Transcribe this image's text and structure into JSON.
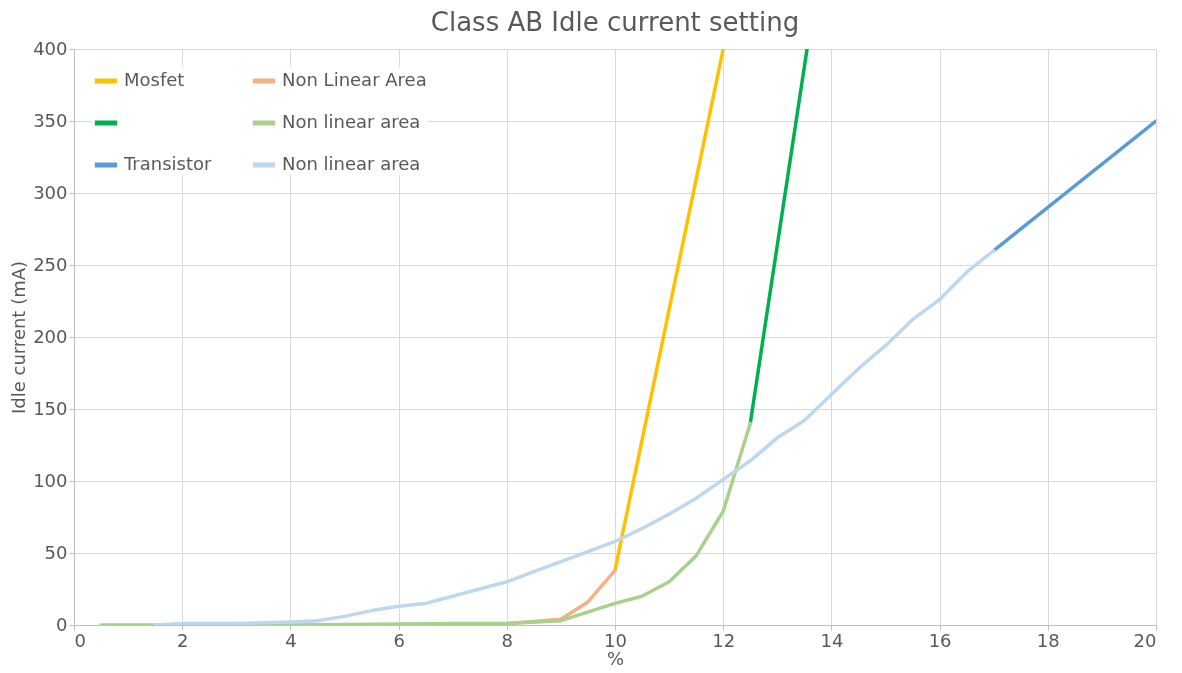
{
  "chart_data": {
    "type": "line",
    "title": "Class AB Idle current setting",
    "xlabel": "%",
    "ylabel": "Idle current (mA)",
    "xlim": [
      0,
      20
    ],
    "xticks": [
      0,
      2,
      4,
      6,
      8,
      10,
      12,
      14,
      16,
      18,
      20
    ],
    "ylim": [
      0,
      400
    ],
    "yticks": [
      0,
      50,
      100,
      150,
      200,
      250,
      300,
      350,
      400
    ],
    "grid": true,
    "legend": "top left",
    "line_style": "solid",
    "marker": "none",
    "series": [
      {
        "name": "Mosfet",
        "color": "#ffc000",
        "x": [
          10,
          12
        ],
        "values": [
          38,
          400
        ]
      },
      {
        "name": "Non Linear Area",
        "color": "#f4b183",
        "x": [
          7,
          8,
          9,
          9.5,
          10
        ],
        "values": [
          0,
          1,
          4,
          16,
          38
        ]
      },
      {
        "color": "#00b050",
        "x": [
          12.5,
          13.55
        ],
        "values": [
          140,
          400
        ]
      },
      {
        "name": "Non linear area",
        "color": "#a9d18e",
        "x": [
          0.5,
          1.5,
          4,
          7,
          8,
          9,
          10,
          10.5,
          11,
          11.5,
          12,
          12.5
        ],
        "values": [
          0,
          0,
          0,
          1,
          1,
          3,
          15,
          20,
          30,
          48,
          79,
          140
        ]
      },
      {
        "name": "Transistor",
        "color": "#5b9bd5",
        "x": [
          17,
          20
        ],
        "values": [
          260,
          350
        ]
      },
      {
        "name": "Non linear area",
        "color": "#bdd7ee",
        "x": [
          1.5,
          2,
          3,
          4,
          4.5,
          5,
          5.5,
          6,
          6.5,
          7,
          7.5,
          8,
          8.5,
          9,
          9.5,
          10,
          10.5,
          11,
          11.5,
          12,
          12.5,
          13,
          13.5,
          14,
          14.5,
          15,
          15.5,
          16,
          16.5,
          17
        ],
        "values": [
          0,
          1,
          1,
          2,
          3,
          6,
          10,
          13,
          15,
          20,
          25,
          30,
          37,
          44,
          51,
          58,
          67,
          77,
          88,
          101,
          114,
          130,
          142,
          160,
          178,
          194,
          212,
          226,
          245,
          260
        ]
      }
    ]
  }
}
